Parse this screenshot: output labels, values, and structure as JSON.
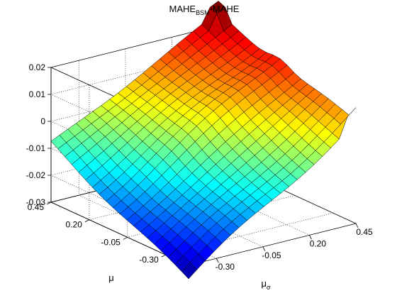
{
  "chart_data": {
    "type": "surface",
    "title": {
      "main": "MAHE",
      "sub": "BSM",
      "rest": "-MAHE"
    },
    "xlabel": {
      "main": "μ",
      "sub": "σ"
    },
    "ylabel": "μ",
    "zlabel": "",
    "x_ticks": [
      "-0.30",
      "-0.05",
      "0.20",
      "0.45"
    ],
    "y_ticks": [
      "-0.30",
      "-0.05",
      "0.20",
      "0.45"
    ],
    "z_ticks": [
      "-0.03",
      "-0.02",
      "-0.01",
      "0",
      "0.01",
      "0.02"
    ],
    "x_range": [
      -0.45,
      0.45
    ],
    "y_range": [
      -0.45,
      0.45
    ],
    "zlim": [
      -0.03,
      0.02
    ],
    "grid": true,
    "colormap": "jet",
    "grid_size": [
      21,
      21
    ],
    "corner_values": {
      "x_min_y_min": -0.035,
      "x_max_y_min": 0.008,
      "x_min_y_max": -0.008,
      "x_max_y_max": 0.0245
    }
  }
}
